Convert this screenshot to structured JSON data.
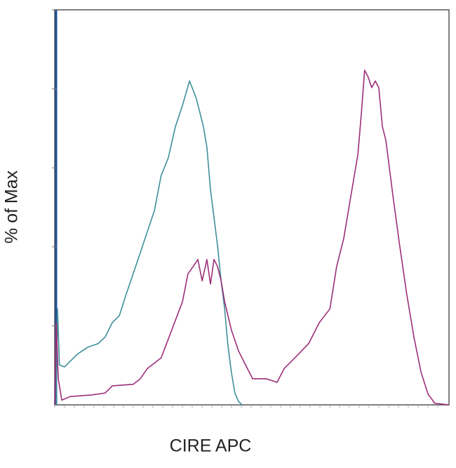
{
  "chart_data": {
    "type": "line",
    "x_label": "CIRE APC",
    "y_label": "% of Max",
    "xlim": [
      0,
      100
    ],
    "ylim": [
      0,
      100
    ],
    "series": [
      {
        "color": "#3f8f9a",
        "x": [
          0.4,
          0.7,
          1.2,
          2.5,
          3.9,
          5.7,
          8.4,
          11.0,
          12.8,
          14.6,
          16.4,
          18.1,
          19.9,
          21.7,
          23.5,
          25.3,
          27.0,
          28.8,
          30.6,
          32.4,
          34.2,
          35.9,
          37.7,
          38.6,
          39.5,
          40.4,
          41.3,
          42.2,
          43.1,
          43.9,
          44.8,
          45.7,
          46.6,
          47.5
        ],
        "values": [
          0,
          24.3,
          10.1,
          9.6,
          11.0,
          12.8,
          14.6,
          15.5,
          17.2,
          20.8,
          22.6,
          27.9,
          33.2,
          38.5,
          43.9,
          49.2,
          58.1,
          62.5,
          70.4,
          75.8,
          82.0,
          77.6,
          70.5,
          65.2,
          54.5,
          47.4,
          40.3,
          31.4,
          24.3,
          15.3,
          8.3,
          3.0,
          0.9,
          0
        ]
      },
      {
        "color": "#9c2f7a",
        "x": [
          0,
          0.4,
          0.9,
          1.8,
          3.9,
          9.3,
          12.8,
          14.6,
          19.9,
          21.7,
          23.5,
          27.0,
          29.7,
          32.4,
          33.8,
          35.1,
          36.3,
          37.4,
          38.6,
          39.5,
          40.4,
          41.3,
          42.2,
          43.1,
          44.8,
          46.6,
          48.4,
          50.2,
          53.7,
          56.4,
          58.2,
          60.9,
          64.4,
          67.1,
          69.8,
          71.5,
          73.3,
          75.1,
          76.9,
          77.8,
          78.6,
          79.5,
          80.4,
          81.3,
          82.2,
          83.1,
          84.0,
          85.8,
          87.5,
          89.3,
          91.1,
          92.9,
          94.7,
          96.4,
          100
        ],
        "values": [
          0,
          20.8,
          6.6,
          1.2,
          2.1,
          2.5,
          3.0,
          4.8,
          5.2,
          6.6,
          9.2,
          11.9,
          19.0,
          26.1,
          33.2,
          35.0,
          36.8,
          31.4,
          36.8,
          30.6,
          36.8,
          35.0,
          31.4,
          26.1,
          19.0,
          13.7,
          10.1,
          6.6,
          6.6,
          5.7,
          9.2,
          11.9,
          15.5,
          20.8,
          24.3,
          35.0,
          42.1,
          52.8,
          63.4,
          74.1,
          84.7,
          83.0,
          80.3,
          82.0,
          80.3,
          70.5,
          66.9,
          52.8,
          40.3,
          27.9,
          17.2,
          8.3,
          2.7,
          0.4,
          0
        ]
      }
    ]
  }
}
